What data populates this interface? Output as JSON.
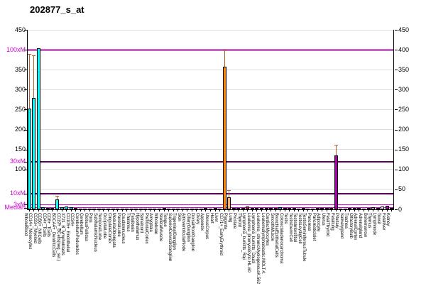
{
  "title": "202877_s_at",
  "y_axis": {
    "left_labels": [
      {
        "text": "450",
        "value": 450,
        "color": "#000000"
      },
      {
        "text": "100xM",
        "value": 400,
        "color": "#cc00cc"
      },
      {
        "text": "350",
        "value": 350,
        "color": "#000000"
      },
      {
        "text": "300",
        "value": 300,
        "color": "#000000"
      },
      {
        "text": "250",
        "value": 250,
        "color": "#000000"
      },
      {
        "text": "200",
        "value": 200,
        "color": "#000000"
      },
      {
        "text": "150",
        "value": 150,
        "color": "#000000"
      },
      {
        "text": "30xM",
        "value": 120,
        "color": "#cc00cc"
      },
      {
        "text": "100",
        "value": 100,
        "color": "#000000"
      },
      {
        "text": "10xM",
        "value": 40,
        "color": "#cc00cc"
      },
      {
        "text": "3xM",
        "value": 12,
        "color": "#cc00cc"
      },
      {
        "text": "Median",
        "value": 4,
        "color": "#cc00cc"
      }
    ],
    "right_labels": [
      {
        "text": "450",
        "value": 450
      },
      {
        "text": "400",
        "value": 400
      },
      {
        "text": "350",
        "value": 350
      },
      {
        "text": "300",
        "value": 300
      },
      {
        "text": "250",
        "value": 250
      },
      {
        "text": "200",
        "value": 200
      },
      {
        "text": "150",
        "value": 150
      },
      {
        "text": "100",
        "value": 100
      },
      {
        "text": "50",
        "value": 50
      },
      {
        "text": "0",
        "value": 0
      }
    ]
  },
  "chart_data": {
    "type": "bar",
    "title": "202877_s_at",
    "xlabel": "",
    "ylabel": "",
    "ylim": [
      0,
      450
    ],
    "grid_step": 50,
    "grid": true,
    "legend_position": "none",
    "error_bar_color": "#b45f2f",
    "median_lines": [
      {
        "label": "Median",
        "value": 4,
        "color": "#cc00cc",
        "width": 1
      },
      {
        "label": "3xM",
        "value": 12,
        "color": "#cc00cc",
        "width": 1
      },
      {
        "label": "10xM",
        "value": 40,
        "color": "#5a005a",
        "width": 2
      },
      {
        "label": "30xM",
        "value": 120,
        "color": "#5a005a",
        "width": 2
      },
      {
        "label": "100xM",
        "value": 400,
        "color": "#c661c6",
        "width": 3
      }
    ],
    "categories": [
      "WholeBlood",
      "CD14+_Monocytes",
      "CD33+_Myeloid",
      "CD56+_NKCells",
      "CD4+_Tcells",
      "CD8+_Tcells",
      "BDCA4+_DentriticCells",
      "CD19+_BCells(neg._sel.)",
      "X721_B_lymphoblasts",
      "CD105+_Endothelial",
      "CD34+",
      "CerebellumPeduncles",
      "Cerebellum",
      "GlobusPallidus",
      "Pons",
      "SubthalamicNucleus",
      "TemporalLobe",
      "OccipitalLobe",
      "CingulateCortex",
      "MedullaOblongata",
      "ParietalLobe",
      "Caudatenucleus",
      "Thalamus",
      "Fetalbrain",
      "Hypothalamus",
      "Spinalcord",
      "PrefrontalCortex",
      "Amygdala",
      "Wholebrain",
      "SkeletalMuscle",
      "Tongue",
      "SuperiorCervicalGanglion",
      "TrigeminalGanglion",
      "Skin",
      "AtrioventricularNode",
      "CiliaryGanglion",
      "DorsalRootGanglion",
      "Ovary",
      "Appendix",
      "UterusCorpus",
      "Heart",
      "Liver",
      "CD71+_EarlyErythroid",
      "Placenta",
      "Lung",
      "Prostate",
      "Thyroid",
      "Lymphoma_burkitts_Raji",
      "Leukemia_promyelocytic.HL.60",
      "Lymphoma_burkitts_Daudi",
      "Leukemia_chronicMyelogenousK.562",
      "Leukemialymphoblastic.MOLT.4.",
      "CardiacMyocytes",
      "SmoothMuscle",
      "BronchialEpithelialCells",
      "Colorectaladenocarcinoma",
      "Testis",
      "TestisGermCell",
      "TestisInterstitial",
      "TestisLeydigCell",
      "TestisSeminiferousTubule",
      "Pancreas",
      "PancreaticIslet",
      "Adipocyte",
      "Uterus",
      "FetalThyroid",
      "Fetallung",
      "Pituitary",
      "Salivarygland",
      "Trachea",
      "OlfactoryBulb",
      "AdrenalCortex",
      "Adrenalgland",
      "Bonemarrow",
      "Thymus",
      "Lymphnode",
      "Tonsil",
      "Fetalliver",
      "Kidney"
    ],
    "values": [
      253,
      280,
      404,
      5,
      3,
      3,
      25,
      5,
      7,
      6,
      4,
      2,
      2,
      2,
      2,
      2,
      2,
      2,
      2,
      2,
      2,
      2,
      2,
      2,
      2,
      2,
      2,
      2,
      2,
      3,
      2,
      2,
      2,
      2,
      2,
      2,
      2,
      2,
      3,
      2,
      3,
      2,
      357,
      30,
      4,
      3,
      3,
      7,
      3,
      3,
      3,
      3,
      3,
      4,
      5,
      3,
      3,
      3,
      2,
      3,
      2,
      2,
      3,
      4,
      3,
      4,
      135,
      2,
      2,
      4,
      3,
      3,
      2,
      4,
      5,
      4,
      7,
      9,
      4
    ],
    "error_high": [
      390,
      386,
      null,
      null,
      null,
      null,
      33,
      null,
      null,
      null,
      null,
      null,
      null,
      null,
      null,
      null,
      null,
      null,
      null,
      null,
      null,
      null,
      null,
      null,
      null,
      null,
      null,
      null,
      null,
      null,
      null,
      null,
      null,
      null,
      null,
      null,
      null,
      null,
      null,
      null,
      null,
      null,
      400,
      48,
      null,
      null,
      null,
      null,
      null,
      null,
      null,
      null,
      null,
      null,
      null,
      null,
      null,
      null,
      null,
      null,
      null,
      null,
      null,
      null,
      null,
      null,
      161,
      null,
      null,
      null,
      null,
      null,
      null,
      null,
      null,
      null,
      null,
      null,
      null
    ],
    "colors": [
      "#00ffff",
      "#00ffff",
      "#00ffff",
      "#00ffff",
      "#00ffff",
      "#00ffff",
      "#00ffff",
      "#00ffff",
      "#00ffff",
      "#00ffff",
      "#00ffff",
      "#008a00",
      "#008a00",
      "#008a00",
      "#008a00",
      "#008a00",
      "#008a00",
      "#008a00",
      "#008a00",
      "#008a00",
      "#008a00",
      "#008a00",
      "#008a00",
      "#008a00",
      "#008a00",
      "#008a00",
      "#008a00",
      "#008a00",
      "#008a00",
      "#d03020",
      "#d03020",
      "#7733aa",
      "#7733aa",
      "#996633",
      "#7733aa",
      "#7733aa",
      "#7733aa",
      "#b050b0",
      "#208020",
      "#b050b0",
      "#d03020",
      "#884422",
      "#ff8800",
      "#ffaa66",
      "#00dddd",
      "#4466cc",
      "#00dddd",
      "#e00040",
      "#e00040",
      "#e00040",
      "#e00040",
      "#e00040",
      "#d03020",
      "#d03020",
      "#00dddd",
      "#e00040",
      "#6633cc",
      "#6633cc",
      "#6633cc",
      "#6633cc",
      "#6633cc",
      "#886644",
      "#886644",
      "#999999",
      "#b050b0",
      "#aa00aa",
      "#aa00aa",
      "#999999",
      "#999999",
      "#00dddd",
      "#008a00",
      "#cc8800",
      "#cc8800",
      "#00ffff",
      "#cccccc",
      "#cccccc",
      "#ffffff",
      "#aa00aa",
      "#886644"
    ]
  }
}
